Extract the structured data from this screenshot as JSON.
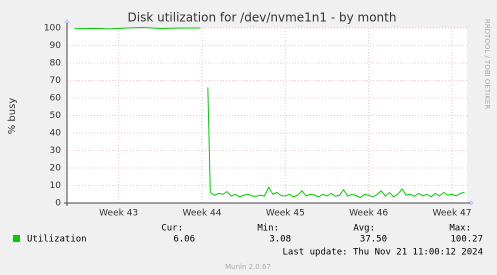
{
  "chart_data": {
    "type": "line",
    "title": "Disk utilization for /dev/nvme1n1 - by month",
    "y_label": "% busy",
    "side_label": "RRDTOOL / TOBI OETIKER",
    "xlim": [
      42.38,
      47.18
    ],
    "xticks": [
      {
        "value": 43,
        "label": "Week 43"
      },
      {
        "value": 44,
        "label": "Week 44"
      },
      {
        "value": 45,
        "label": "Week 45"
      },
      {
        "value": 46,
        "label": "Week 46"
      },
      {
        "value": 47,
        "label": "Week 47"
      }
    ],
    "ylim": [
      0,
      100
    ],
    "yticks": [
      0,
      10,
      20,
      30,
      40,
      50,
      60,
      70,
      80,
      90,
      100
    ],
    "grid": true,
    "x": [
      42.47,
      42.7,
      42.9,
      43.1,
      43.3,
      43.5,
      43.7,
      43.98,
      44.02,
      44.07,
      44.1,
      44.15,
      44.2,
      44.25,
      44.3,
      44.35,
      44.4,
      44.45,
      44.5,
      44.55,
      44.6,
      44.65,
      44.7,
      44.75,
      44.8,
      44.85,
      44.9,
      44.95,
      45.0,
      45.05,
      45.1,
      45.15,
      45.2,
      45.25,
      45.3,
      45.35,
      45.4,
      45.45,
      45.5,
      45.55,
      45.6,
      45.65,
      45.7,
      45.75,
      45.8,
      45.85,
      45.9,
      45.95,
      46.0,
      46.05,
      46.1,
      46.15,
      46.2,
      46.25,
      46.3,
      46.35,
      46.4,
      46.45,
      46.5,
      46.55,
      46.6,
      46.65,
      46.7,
      46.75,
      46.8,
      46.85,
      46.9,
      46.95,
      47.0,
      47.05,
      47.1,
      47.15
    ],
    "series": [
      {
        "name": "Utilization",
        "color": "#00cc00",
        "values": [
          99.6,
          99.8,
          99.5,
          100,
          100.27,
          99.7,
          99.9,
          100,
          null,
          66,
          6,
          4.5,
          5.5,
          5,
          6.5,
          4,
          5,
          3.5,
          4.5,
          5,
          4,
          3.8,
          4.5,
          4,
          9,
          5,
          6,
          4.2,
          4,
          5,
          3.5,
          4.5,
          7,
          4,
          5,
          4.5,
          3.5,
          5,
          4,
          5.5,
          3.8,
          4.5,
          7.5,
          4,
          5,
          4.2,
          3.08,
          5,
          4.5,
          3.5,
          4.8,
          7,
          4,
          6,
          3.5,
          5,
          8,
          4.5,
          5,
          3.8,
          5.5,
          4,
          5,
          3.5,
          5.5,
          4,
          6,
          4.5,
          5,
          4,
          5.5,
          6.06
        ],
        "stats": [
          {
            "label": "Cur:",
            "value": "6.06"
          },
          {
            "label": "Min:",
            "value": "3.08"
          },
          {
            "label": "Avg:",
            "value": "37.50"
          },
          {
            "label": "Max:",
            "value": "100.27"
          }
        ]
      }
    ],
    "last_update": "Last update: Thu Nov 21 11:00:12 2024",
    "footer": "Munin 2.0.67"
  }
}
